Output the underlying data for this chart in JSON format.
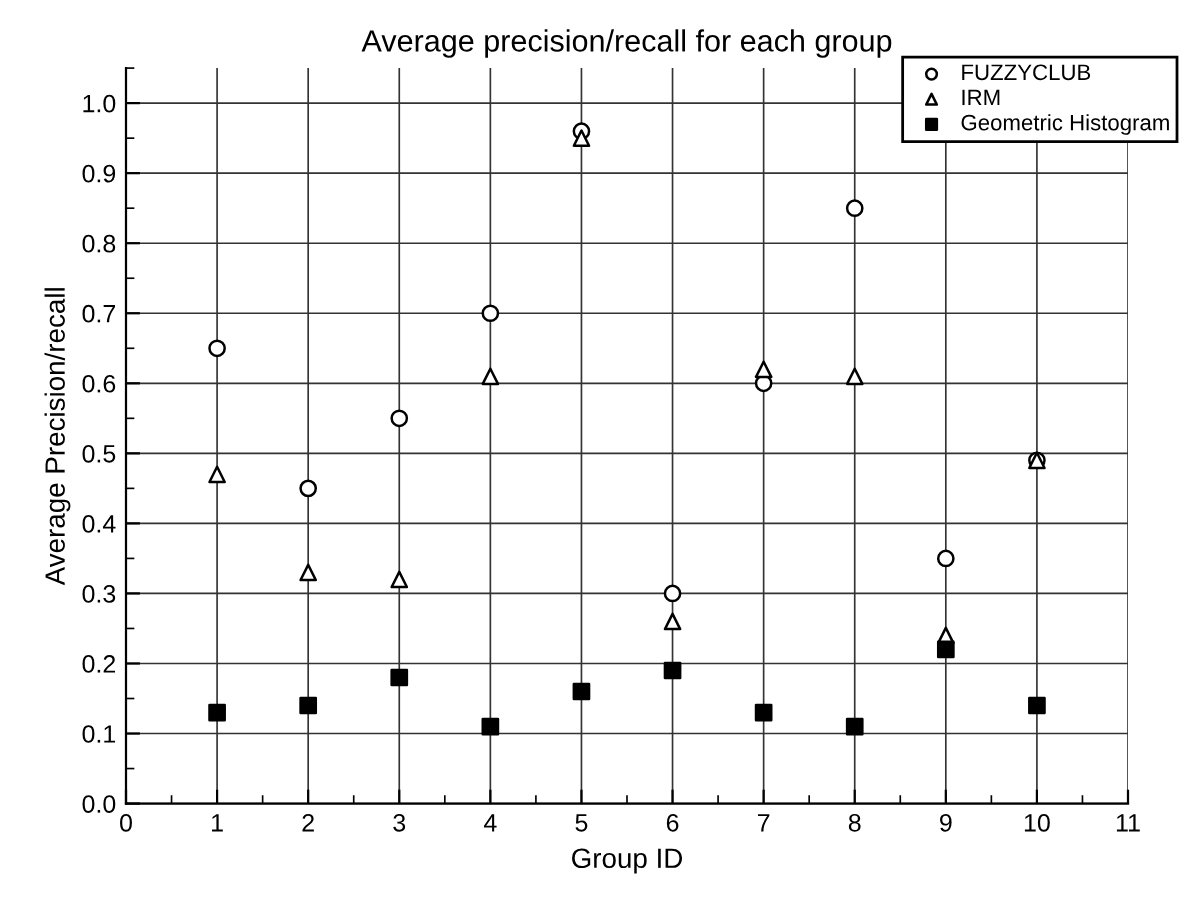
{
  "chart_data": {
    "type": "scatter",
    "title": "Average precision/recall for each group",
    "xlabel": "Group ID",
    "ylabel": "Average Precision/recall",
    "x": [
      1,
      2,
      3,
      4,
      5,
      6,
      7,
      8,
      9,
      10
    ],
    "series": [
      {
        "name": "FUZZYCLUB",
        "color": "#000000",
        "marker": "circle",
        "values": [
          0.65,
          0.45,
          0.55,
          0.7,
          0.96,
          0.3,
          0.6,
          0.85,
          0.35,
          0.49
        ]
      },
      {
        "name": "IRM",
        "color": "#000000",
        "marker": "triangle",
        "values": [
          0.47,
          0.33,
          0.32,
          0.61,
          0.95,
          0.26,
          0.62,
          0.61,
          0.24,
          0.49
        ]
      },
      {
        "name": "Geometric Histogram",
        "color": "#000000",
        "marker": "square",
        "values": [
          0.13,
          0.14,
          0.18,
          0.11,
          0.16,
          0.19,
          0.13,
          0.11,
          0.22,
          0.14
        ]
      }
    ],
    "xlim": [
      0,
      11
    ],
    "xticks": [
      0,
      1,
      2,
      3,
      4,
      5,
      6,
      7,
      8,
      9,
      10,
      11
    ],
    "ylim": [
      0,
      1.05
    ],
    "yticks": [
      {
        "value": 0,
        "label": "0.0"
      },
      0.1,
      0.2,
      0.3,
      0.4,
      0.5,
      0.6,
      0.7,
      0.8,
      0.9,
      {
        "value": 1,
        "label": "1.0"
      }
    ],
    "grid": true,
    "legend": "top right"
  }
}
